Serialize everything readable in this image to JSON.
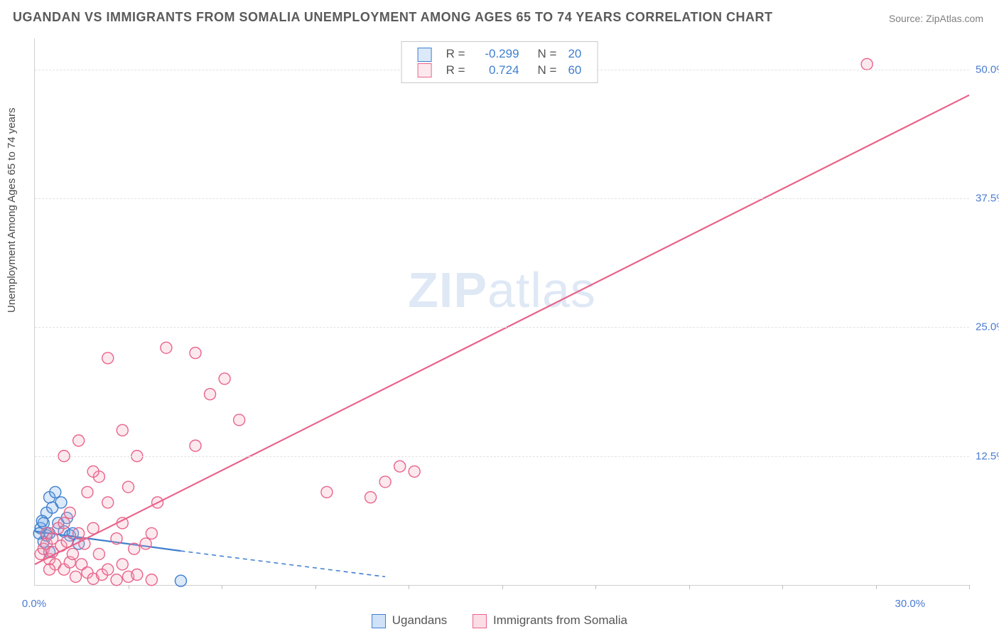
{
  "title": "UGANDAN VS IMMIGRANTS FROM SOMALIA UNEMPLOYMENT AMONG AGES 65 TO 74 YEARS CORRELATION CHART",
  "source": "Source: ZipAtlas.com",
  "ylabel": "Unemployment Among Ages 65 to 74 years",
  "watermark_bold": "ZIP",
  "watermark_light": "atlas",
  "chart": {
    "type": "scatter",
    "xlim": [
      0,
      32
    ],
    "ylim": [
      0,
      53
    ],
    "x_axis_start_label": "0.0%",
    "x_axis_end_label": "30.0%",
    "y_ticks": [
      {
        "v": 12.5,
        "label": "12.5%"
      },
      {
        "v": 25.0,
        "label": "25.0%"
      },
      {
        "v": 37.5,
        "label": "37.5%"
      },
      {
        "v": 50.0,
        "label": "50.0%"
      }
    ],
    "x_tick_marks": [
      3.2,
      6.4,
      9.6,
      12.8,
      16.0,
      19.2,
      22.4,
      25.6,
      28.8,
      32.0
    ],
    "grid_color": "#e2e2e2",
    "background": "#ffffff",
    "marker_radius": 8,
    "marker_stroke_width": 1.4,
    "marker_fill_opacity": 0.25,
    "series": [
      {
        "name": "Ugandans",
        "color": "#6ea6e8",
        "stroke": "#3f7fcf",
        "R": "-0.299",
        "N": "20",
        "trend": {
          "x1": 0,
          "y1": 5.2,
          "x2": 5.0,
          "y2": 3.3,
          "solid_until_x": 5.0,
          "dashed_to_x": 12.0,
          "dashed_y2": 0.8
        },
        "points": [
          [
            0.2,
            5.5
          ],
          [
            0.3,
            6.0
          ],
          [
            0.4,
            7.0
          ],
          [
            0.5,
            8.5
          ],
          [
            0.5,
            5.0
          ],
          [
            0.6,
            7.5
          ],
          [
            0.7,
            9.0
          ],
          [
            0.8,
            6.0
          ],
          [
            0.9,
            8.0
          ],
          [
            1.0,
            5.2
          ],
          [
            1.1,
            6.5
          ],
          [
            1.2,
            4.8
          ],
          [
            1.3,
            5.0
          ],
          [
            1.5,
            4.0
          ],
          [
            0.3,
            4.2
          ],
          [
            0.4,
            4.8
          ],
          [
            0.15,
            5.0
          ],
          [
            0.25,
            6.2
          ],
          [
            0.5,
            3.2
          ],
          [
            5.0,
            0.4
          ]
        ]
      },
      {
        "name": "Immigrants from Somalia",
        "color": "#f4a9bd",
        "stroke": "#e9638a",
        "R": "0.724",
        "N": "60",
        "trend": {
          "x1": 0,
          "y1": 2.0,
          "x2": 32,
          "y2": 47.5
        },
        "points": [
          [
            0.2,
            3.0
          ],
          [
            0.3,
            3.5
          ],
          [
            0.4,
            4.0
          ],
          [
            0.4,
            5.0
          ],
          [
            0.5,
            2.5
          ],
          [
            0.6,
            3.2
          ],
          [
            0.6,
            4.5
          ],
          [
            0.7,
            2.0
          ],
          [
            0.8,
            5.5
          ],
          [
            0.9,
            3.8
          ],
          [
            1.0,
            1.5
          ],
          [
            1.0,
            6.0
          ],
          [
            1.1,
            4.2
          ],
          [
            1.2,
            2.2
          ],
          [
            1.2,
            7.0
          ],
          [
            1.3,
            3.0
          ],
          [
            1.4,
            0.8
          ],
          [
            1.5,
            5.0
          ],
          [
            1.6,
            2.0
          ],
          [
            1.7,
            4.0
          ],
          [
            1.8,
            1.2
          ],
          [
            2.0,
            0.6
          ],
          [
            2.0,
            5.5
          ],
          [
            2.2,
            3.0
          ],
          [
            2.3,
            1.0
          ],
          [
            2.2,
            10.5
          ],
          [
            2.5,
            8.0
          ],
          [
            2.5,
            1.5
          ],
          [
            2.8,
            4.5
          ],
          [
            2.8,
            0.5
          ],
          [
            3.0,
            6.0
          ],
          [
            3.0,
            2.0
          ],
          [
            3.2,
            0.8
          ],
          [
            3.4,
            3.5
          ],
          [
            3.5,
            1.0
          ],
          [
            3.8,
            4.0
          ],
          [
            4.0,
            5.0
          ],
          [
            4.0,
            0.5
          ],
          [
            1.0,
            12.5
          ],
          [
            1.5,
            14.0
          ],
          [
            2.0,
            11.0
          ],
          [
            3.0,
            15.0
          ],
          [
            3.5,
            12.5
          ],
          [
            5.5,
            13.5
          ],
          [
            2.5,
            22.0
          ],
          [
            4.5,
            23.0
          ],
          [
            5.5,
            22.5
          ],
          [
            6.0,
            18.5
          ],
          [
            6.5,
            20.0
          ],
          [
            7.0,
            16.0
          ],
          [
            11.5,
            8.5
          ],
          [
            12.0,
            10.0
          ],
          [
            12.5,
            11.5
          ],
          [
            13.0,
            11.0
          ],
          [
            10.0,
            9.0
          ],
          [
            3.2,
            9.5
          ],
          [
            4.2,
            8.0
          ],
          [
            1.8,
            9.0
          ],
          [
            0.5,
            1.5
          ],
          [
            28.5,
            50.5
          ]
        ]
      }
    ],
    "legend_bottom": [
      {
        "label": "Ugandans",
        "fill": "#cfe2f7",
        "border": "#3f7fcf"
      },
      {
        "label": "Immigrants from Somalia",
        "fill": "#fbdde5",
        "border": "#e9638a"
      }
    ],
    "legend_top": {
      "label_color": "#555555",
      "value_color": "#3f7fcf"
    }
  }
}
